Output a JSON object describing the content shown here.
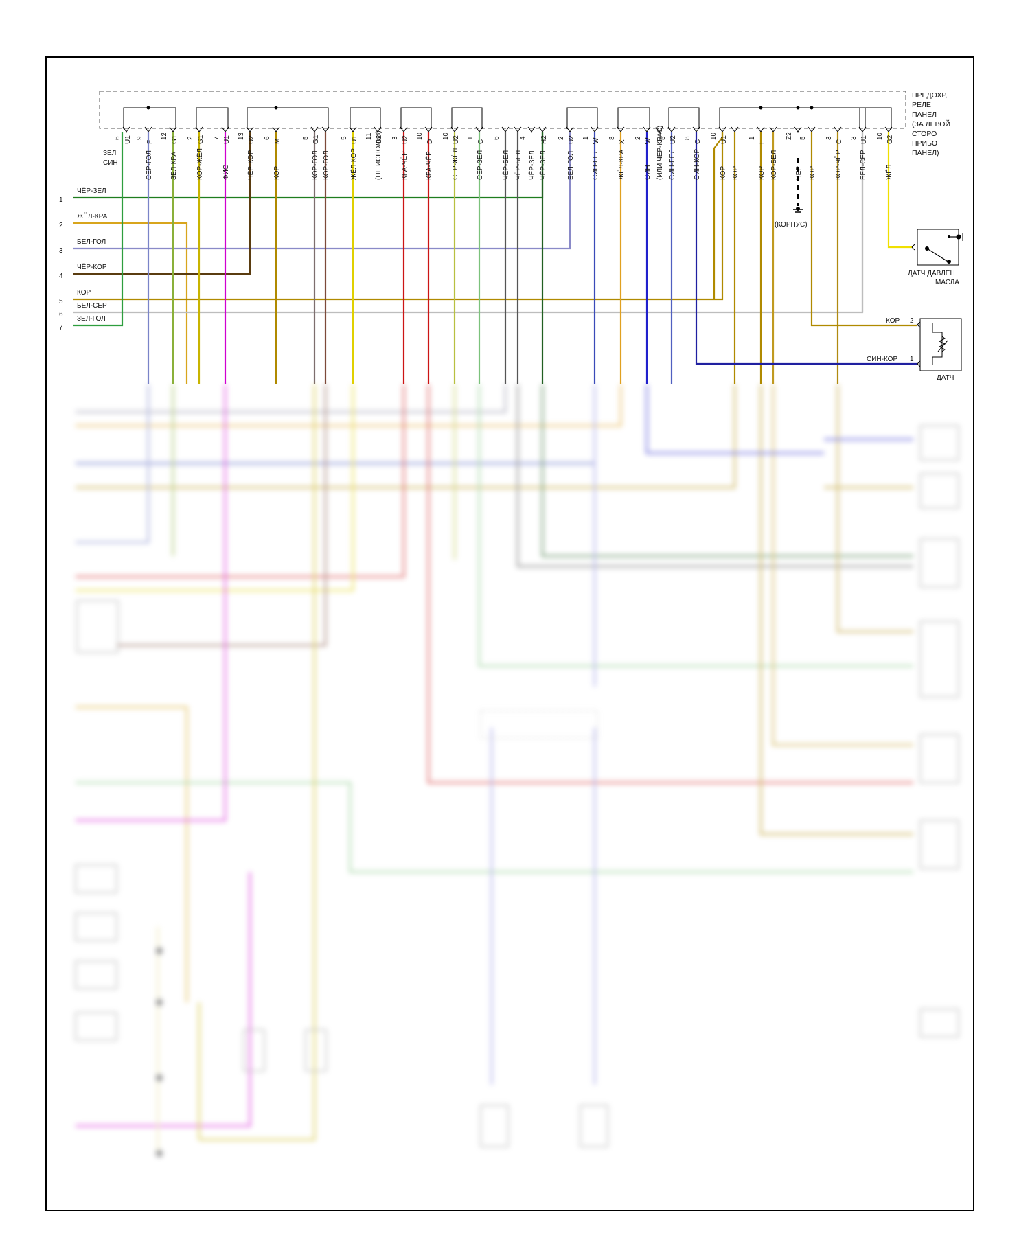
{
  "relay_panel": {
    "label": [
      "ПРЕДОХР,",
      "РЕЛЕ",
      "ПАНЕЛ",
      "(ЗА ЛЕВОЙ",
      "СТОРО",
      "ПРИБО",
      "ПАНЕЛ)"
    ]
  },
  "colors": {
    "ЧЁР-ЗЕЛ": "#1e7d1e",
    "ЖЁЛ-КРА": "#d8a51c",
    "БЕЛ-ГОЛ": "#8a8ac8",
    "ЧЁР-КОР": "#5a3c10",
    "КОР": "#b08a00",
    "БЕЛ-СЕР": "#bdbdbd",
    "ЗЕЛ-ГОЛ": "#2e9e3e",
    "СЕР-ГОЛ": "#7a84c8",
    "ЗЕЛ-КРА": "#8ab03a",
    "КОР-ЖЁЛ": "#c8b400",
    "ФИО": "#d000d0",
    "КОР-ГОЛ": "#7d6e6e",
    "КОР-ГОЛ2": "#7d4a3a",
    "ЖЁЛ-КОР": "#e0d000",
    "КРА-ЧЁР": "#cc1515",
    "СЕР-ЖЁЛ": "#b8c040",
    "СЕР-ЗЕЛ": "#7cc27c",
    "ЧЁР-БЕЛ": "#555555",
    "ЧЁР-ЗЕЛ2": "#226022",
    "СИН-БЕЛ": "#3a4ab8",
    "ЖЁЛ-КРА2": "#e0a020",
    "СИН": "#2020cc",
    "СИН-БЕЛ2": "#5060c0",
    "СИН-КОР": "#2020a0",
    "КОР-БЕЛ": "#c09a20",
    "ЧЕР": "#000000",
    "КОР-ЧЁР": "#b08a10",
    "ЖЁЛ": "#f0e000",
    "FRAME": "#000000"
  },
  "left_wires": [
    {
      "num": "1",
      "label": "ЧЁР-ЗЕЛ"
    },
    {
      "num": "2",
      "label": "ЖЁЛ-КРА"
    },
    {
      "num": "3",
      "label": "БЕЛ-ГОЛ"
    },
    {
      "num": "4",
      "label": "ЧЁР-КОР"
    },
    {
      "num": "5",
      "label": "КОР"
    },
    {
      "num": "6",
      "label": "БЕЛ-СЕР"
    },
    {
      "num": "7",
      "label": "ЗЕЛ-ГОЛ"
    }
  ],
  "top_pins": [
    {
      "pin": "6",
      "conn": "U1",
      "label": "ЗЕЛ СИН"
    },
    {
      "pin": "9",
      "conn": "F",
      "label": "СЕР-ГОЛ"
    },
    {
      "pin": "12",
      "conn": "G1",
      "label": "ЗЕЛ-КРА"
    },
    {
      "pin": "2",
      "conn": "G1",
      "label": "КОР-ЖЁЛ"
    },
    {
      "pin": "7",
      "conn": "U1",
      "label": "ФИО"
    },
    {
      "pin": "13",
      "conn": "U2",
      "label": "ЧЁР-КОР"
    },
    {
      "pin": "6",
      "conn": "M",
      "label": "КОР"
    },
    {
      "pin": "5",
      "conn": "G1",
      "label": "КОР-ГОЛ"
    },
    {
      "pin": "",
      "conn": "",
      "label": "КОР-ГОЛ"
    },
    {
      "pin": "5",
      "conn": "U1",
      "label": "ЖЁЛ-КОР"
    },
    {
      "pin": "11",
      "conn": "G2",
      "label": "(НЕ ИСПОЛЬЗ)"
    },
    {
      "pin": "3",
      "conn": "U2",
      "label": "КРА-ЧЁР"
    },
    {
      "pin": "10",
      "conn": "D",
      "label": "КРА-ЧЁР"
    },
    {
      "pin": "10",
      "conn": "U2",
      "label": "СЕР-ЖЁЛ"
    },
    {
      "pin": "1",
      "conn": "C",
      "label": "СЕР-ЗЕЛ"
    },
    {
      "pin": "6",
      "conn": "",
      "label": "ЧЁР-БЕЛ"
    },
    {
      "pin": "",
      "conn": "",
      "label": "ЧЁР-БЕЛ"
    },
    {
      "pin": "4",
      "conn": "",
      "label": "ЧЁР-ЗЕЛ"
    },
    {
      "pin": "",
      "conn": "H2",
      "label": "ЧЁР-ЗЕЛ"
    },
    {
      "pin": "2",
      "conn": "U2",
      "label": "БЕЛ-ГОЛ"
    },
    {
      "pin": "1",
      "conn": "W",
      "label": "СИН-БЕЛ"
    },
    {
      "pin": "8",
      "conn": "X",
      "label": "ЖЁЛ-КРА"
    },
    {
      "pin": "2",
      "conn": "W",
      "label": "СИН"
    },
    {
      "pin": "",
      "conn": "",
      "label": "(ИЛИ ЧЕР-КРАС)"
    },
    {
      "pin": "5",
      "conn": "U2",
      "label": "СИН-БЕЛ"
    },
    {
      "pin": "8",
      "conn": "C",
      "label": "СИН-КОР"
    },
    {
      "pin": "10",
      "conn": "U1",
      "label": "КОР"
    },
    {
      "pin": "",
      "conn": "",
      "label": "КОР"
    },
    {
      "pin": "1",
      "conn": "L",
      "label": "КОР"
    },
    {
      "pin": "",
      "conn": "",
      "label": "КОР-БЕЛ"
    },
    {
      "pin": "Z2",
      "conn": "",
      "label": "ЧЕР"
    },
    {
      "pin": "5",
      "conn": "",
      "label": "КОР"
    },
    {
      "pin": "3",
      "conn": "C",
      "label": "КОР-ЧЁР"
    },
    {
      "pin": "3",
      "conn": "U1",
      "label": "БЕЛ-СЕР"
    },
    {
      "pin": "10",
      "conn": "G2",
      "label": "ЖЁЛ"
    }
  ],
  "ground_label": "(КОРПУС)",
  "oil_sensor": {
    "label": [
      "ДАТЧ ДАВЛЕН",
      "МАСЛА"
    ]
  },
  "right_sensor": {
    "wires": [
      {
        "label": "КОР",
        "pin": "2"
      },
      {
        "label": "СИН-КОР",
        "pin": "1"
      }
    ],
    "label": "ДАТЧ"
  }
}
